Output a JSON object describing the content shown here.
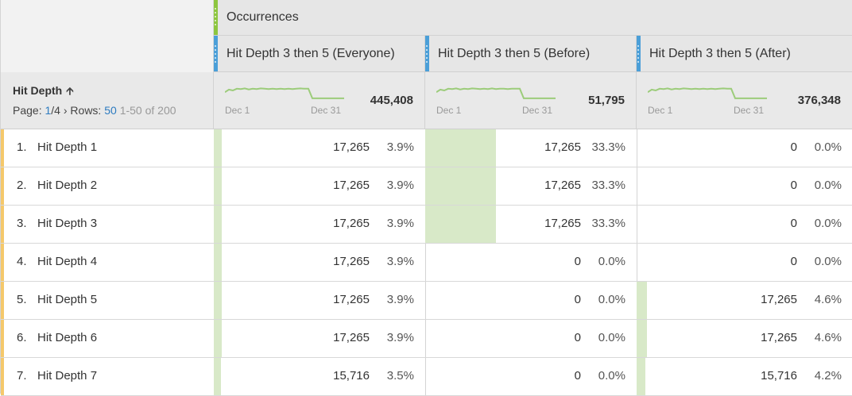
{
  "metric": {
    "title": "Occurrences"
  },
  "segments": [
    {
      "label": "Hit Depth 3 then 5 (Everyone)",
      "total": "445,408",
      "spark_start": "Dec 1",
      "spark_end": "Dec 31",
      "spark": [
        0.6,
        0.45,
        0.5,
        0.4,
        0.42,
        0.38,
        0.44,
        0.4,
        0.42,
        0.38,
        0.4,
        0.42,
        0.4,
        0.42,
        0.4,
        0.42,
        0.4,
        0.42,
        0.4,
        0.38,
        0.4,
        0.4,
        0.95,
        0.95,
        0.95,
        0.95,
        0.95,
        0.95,
        0.95,
        0.95,
        0.95
      ]
    },
    {
      "label": "Hit Depth 3 then 5 (Before)",
      "total": "51,795",
      "spark_start": "Dec 1",
      "spark_end": "Dec 31",
      "spark": [
        0.6,
        0.45,
        0.5,
        0.4,
        0.42,
        0.38,
        0.44,
        0.4,
        0.42,
        0.38,
        0.4,
        0.42,
        0.4,
        0.42,
        0.38,
        0.42,
        0.4,
        0.4,
        0.42,
        0.4,
        0.4,
        0.4,
        0.95,
        0.95,
        0.95,
        0.95,
        0.95,
        0.95,
        0.95,
        0.95,
        0.95
      ]
    },
    {
      "label": "Hit Depth 3 then 5 (After)",
      "total": "376,348",
      "spark_start": "Dec 1",
      "spark_end": "Dec 31",
      "spark": [
        0.6,
        0.45,
        0.5,
        0.4,
        0.42,
        0.38,
        0.44,
        0.4,
        0.42,
        0.38,
        0.4,
        0.42,
        0.4,
        0.42,
        0.4,
        0.42,
        0.4,
        0.42,
        0.4,
        0.38,
        0.4,
        0.4,
        0.95,
        0.95,
        0.95,
        0.95,
        0.95,
        0.95,
        0.95,
        0.95,
        0.95
      ]
    }
  ],
  "dimension": {
    "title": "Hit Depth",
    "sort_icon": "sort-up-arrow-icon",
    "page_label": "Page:",
    "page_current": "1",
    "page_sep": "/",
    "page_total": "4",
    "next_icon": "chevron-right-icon",
    "rows_label": "Rows:",
    "rows_value": "50",
    "range": "1-50 of 200"
  },
  "rows": [
    {
      "num": "1.",
      "label": "Hit Depth 1",
      "cells": [
        {
          "value": "17,265",
          "pct": "3.9%",
          "share": 0.039
        },
        {
          "value": "17,265",
          "pct": "33.3%",
          "share": 0.333
        },
        {
          "value": "0",
          "pct": "0.0%",
          "share": 0
        }
      ]
    },
    {
      "num": "2.",
      "label": "Hit Depth 2",
      "cells": [
        {
          "value": "17,265",
          "pct": "3.9%",
          "share": 0.039
        },
        {
          "value": "17,265",
          "pct": "33.3%",
          "share": 0.333
        },
        {
          "value": "0",
          "pct": "0.0%",
          "share": 0
        }
      ]
    },
    {
      "num": "3.",
      "label": "Hit Depth 3",
      "cells": [
        {
          "value": "17,265",
          "pct": "3.9%",
          "share": 0.039
        },
        {
          "value": "17,265",
          "pct": "33.3%",
          "share": 0.333
        },
        {
          "value": "0",
          "pct": "0.0%",
          "share": 0
        }
      ]
    },
    {
      "num": "4.",
      "label": "Hit Depth 4",
      "cells": [
        {
          "value": "17,265",
          "pct": "3.9%",
          "share": 0.039
        },
        {
          "value": "0",
          "pct": "0.0%",
          "share": 0
        },
        {
          "value": "0",
          "pct": "0.0%",
          "share": 0
        }
      ]
    },
    {
      "num": "5.",
      "label": "Hit Depth 5",
      "cells": [
        {
          "value": "17,265",
          "pct": "3.9%",
          "share": 0.039
        },
        {
          "value": "0",
          "pct": "0.0%",
          "share": 0
        },
        {
          "value": "17,265",
          "pct": "4.6%",
          "share": 0.046
        }
      ]
    },
    {
      "num": "6.",
      "label": "Hit Depth 6",
      "cells": [
        {
          "value": "17,265",
          "pct": "3.9%",
          "share": 0.039
        },
        {
          "value": "0",
          "pct": "0.0%",
          "share": 0
        },
        {
          "value": "17,265",
          "pct": "4.6%",
          "share": 0.046
        }
      ]
    },
    {
      "num": "7.",
      "label": "Hit Depth 7",
      "cells": [
        {
          "value": "15,716",
          "pct": "3.5%",
          "share": 0.035
        },
        {
          "value": "0",
          "pct": "0.0%",
          "share": 0
        },
        {
          "value": "15,716",
          "pct": "4.2%",
          "share": 0.042
        }
      ]
    }
  ],
  "colors": {
    "bar_fill": "#d8e9c8",
    "sparkline": "#9ccc7a",
    "metric_accent": "#8dc63f",
    "segment_accent": "#4b9fd8",
    "row_accent": "#f5c86b"
  }
}
